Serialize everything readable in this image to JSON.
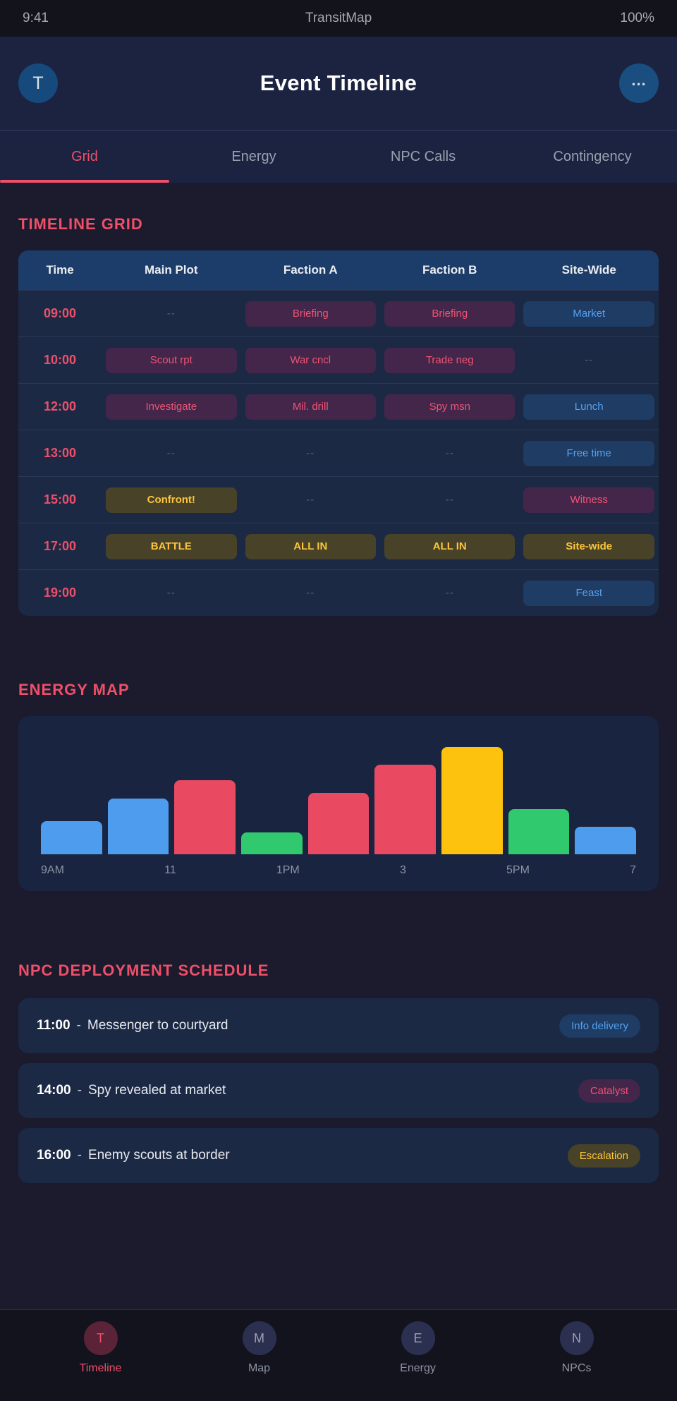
{
  "status_bar": {
    "time": "9:41",
    "title": "TransitMap",
    "battery": "100%"
  },
  "header": {
    "avatar_initial": "T",
    "title": "Event Timeline",
    "menu_label": "..."
  },
  "tabs": [
    {
      "label": "Grid",
      "active": "true"
    },
    {
      "label": "Energy",
      "active": "false"
    },
    {
      "label": "NPC Calls",
      "active": "false"
    },
    {
      "label": "Contingency",
      "active": "false"
    }
  ],
  "timeline_grid": {
    "section_title": "TIMELINE GRID",
    "columns": [
      "Time",
      "Main Plot",
      "Faction A",
      "Faction B",
      "Site-Wide"
    ],
    "rows": [
      {
        "time": "09:00",
        "cells": [
          {
            "label": "--",
            "variant": "dash"
          },
          {
            "label": "Briefing",
            "variant": "plum"
          },
          {
            "label": "Briefing",
            "variant": "plum"
          },
          {
            "label": "Market",
            "variant": "blue"
          }
        ]
      },
      {
        "time": "10:00",
        "cells": [
          {
            "label": "Scout rpt",
            "variant": "plum"
          },
          {
            "label": "War cncl",
            "variant": "plum"
          },
          {
            "label": "Trade neg",
            "variant": "plum"
          },
          {
            "label": "--",
            "variant": "dash"
          }
        ]
      },
      {
        "time": "12:00",
        "cells": [
          {
            "label": "Investigate",
            "variant": "plum"
          },
          {
            "label": "Mil. drill",
            "variant": "plum"
          },
          {
            "label": "Spy msn",
            "variant": "plum"
          },
          {
            "label": "Lunch",
            "variant": "blue"
          }
        ]
      },
      {
        "time": "13:00",
        "cells": [
          {
            "label": "--",
            "variant": "dash"
          },
          {
            "label": "--",
            "variant": "dash"
          },
          {
            "label": "--",
            "variant": "dash"
          },
          {
            "label": "Free time",
            "variant": "blue"
          }
        ]
      },
      {
        "time": "15:00",
        "cells": [
          {
            "label": "Confront!",
            "variant": "olive"
          },
          {
            "label": "--",
            "variant": "dash"
          },
          {
            "label": "--",
            "variant": "dash"
          },
          {
            "label": "Witness",
            "variant": "plum"
          }
        ]
      },
      {
        "time": "17:00",
        "cells": [
          {
            "label": "BATTLE",
            "variant": "olive"
          },
          {
            "label": "ALL IN",
            "variant": "olive"
          },
          {
            "label": "ALL IN",
            "variant": "olive"
          },
          {
            "label": "Site-wide",
            "variant": "olive"
          }
        ]
      },
      {
        "time": "19:00",
        "cells": [
          {
            "label": "--",
            "variant": "dash"
          },
          {
            "label": "--",
            "variant": "dash"
          },
          {
            "label": "--",
            "variant": "dash"
          },
          {
            "label": "Feast",
            "variant": "blue"
          }
        ]
      }
    ]
  },
  "chart_data": {
    "type": "bar",
    "title": "ENERGY MAP",
    "x_tick_labels": [
      "9AM",
      "11",
      "1PM",
      "3",
      "5PM",
      "7"
    ],
    "values": [
      47,
      79,
      105,
      31,
      87,
      127,
      152,
      64,
      39
    ],
    "ylim": [
      0,
      160
    ],
    "value_note": "relative energy level per time slot, read as bar heights (px), max bar = 152",
    "colors": [
      "#4e9cee",
      "#4e9cee",
      "#e94a62",
      "#30c96d",
      "#e94a62",
      "#e94a62",
      "#fdc20d",
      "#30c96d",
      "#4e9cee"
    ],
    "grid": false,
    "legend": false
  },
  "npc_schedule": {
    "section_title": "NPC DEPLOYMENT SCHEDULE",
    "items": [
      {
        "time": "11:00",
        "sep": "-",
        "text": "Messenger to courtyard",
        "badge": "Info delivery",
        "badge_variant": "blue"
      },
      {
        "time": "14:00",
        "sep": "-",
        "text": "Spy revealed at market",
        "badge": "Catalyst",
        "badge_variant": "plum"
      },
      {
        "time": "16:00",
        "sep": "-",
        "text": "Enemy scouts at border",
        "badge": "Escalation",
        "badge_variant": "olive"
      }
    ]
  },
  "bottom_nav": [
    {
      "initial": "T",
      "label": "Timeline",
      "active": "true"
    },
    {
      "initial": "M",
      "label": "Map",
      "active": "false"
    },
    {
      "initial": "E",
      "label": "Energy",
      "active": "false"
    },
    {
      "initial": "N",
      "label": "NPCs",
      "active": "false"
    }
  ],
  "colors": {
    "accent_pink": "#ee4f69",
    "pill_plum_bg": "#43264a",
    "pill_blue_bg": "#1e3c64",
    "pill_olive_bg": "#474228",
    "bar_blue": "#4e9cee",
    "bar_red": "#e94a62",
    "bar_green": "#30c96d",
    "bar_yellow": "#fdc20d",
    "header_navy": "#1b2340",
    "table_header_blue": "#1c3c69"
  }
}
